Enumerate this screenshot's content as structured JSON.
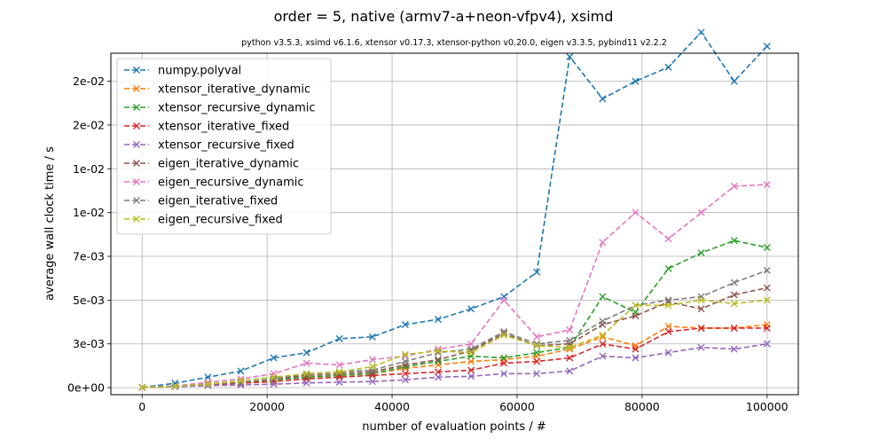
{
  "chart_data": {
    "type": "line",
    "title": "order = 5, native (armv7-a+neon-vfpv4), xsimd",
    "subtitle": "python v3.5.3, xsimd v6.1.6, xtensor v0.17.3, xtensor-python v0.20.0, eigen v3.3.5, pybind11 v2.2.2",
    "xlabel": "number of evaluation points / #",
    "ylabel": "average wall clock time / s",
    "xlim": [
      -5000,
      105000
    ],
    "ylim": [
      -0.0004,
      0.0191
    ],
    "xticks": [
      0,
      20000,
      40000,
      60000,
      80000,
      100000
    ],
    "xtick_labels": [
      "0",
      "20000",
      "40000",
      "60000",
      "80000",
      "100000"
    ],
    "yticks": [
      0,
      0.0025,
      0.005,
      0.0075,
      0.01,
      0.0125,
      0.015,
      0.0175
    ],
    "ytick_labels": [
      "0e+00",
      "3e-03",
      "5e-03",
      "7e-03",
      "1e-02",
      "1e-02",
      "2e-02",
      "2e-02"
    ],
    "grid": true,
    "legend_position": "top-left",
    "x": [
      0,
      5263,
      10526,
      15789,
      21053,
      26316,
      31579,
      36842,
      42105,
      47368,
      52632,
      57895,
      63158,
      68421,
      73684,
      78947,
      84211,
      89474,
      94737,
      100000
    ],
    "series": [
      {
        "name": "numpy.polyval",
        "color": "#1f77b4",
        "values": [
          2e-05,
          0.00025,
          0.0006,
          0.00095,
          0.0017,
          0.002,
          0.0028,
          0.0029,
          0.0036,
          0.0039,
          0.0045,
          0.0052,
          0.0066,
          0.0189,
          0.0165,
          0.0175,
          0.0183,
          0.0203,
          0.0175,
          0.0195
        ]
      },
      {
        "name": "xtensor_iterative_dynamic",
        "color": "#ff7f0e",
        "values": [
          1e-05,
          8e-05,
          0.0002,
          0.0003,
          0.00045,
          0.0006,
          0.0007,
          0.0008,
          0.0011,
          0.0013,
          0.0015,
          0.0016,
          0.0018,
          0.0022,
          0.0029,
          0.0024,
          0.0035,
          0.0034,
          0.0034,
          0.0036
        ]
      },
      {
        "name": "xtensor_recursive_dynamic",
        "color": "#2ca02c",
        "values": [
          1e-05,
          0.0001,
          0.0002,
          0.0003,
          0.00045,
          0.0006,
          0.0007,
          0.0008,
          0.0012,
          0.0015,
          0.0018,
          0.0017,
          0.002,
          0.0023,
          0.0052,
          0.0043,
          0.0068,
          0.0077,
          0.0084,
          0.008
        ]
      },
      {
        "name": "xtensor_iterative_fixed",
        "color": "#d62728",
        "values": [
          1e-05,
          7e-05,
          0.00017,
          0.00025,
          0.00035,
          0.0005,
          0.0006,
          0.0007,
          0.0008,
          0.0009,
          0.001,
          0.0014,
          0.0015,
          0.0017,
          0.0025,
          0.0022,
          0.0032,
          0.0034,
          0.0034,
          0.0034
        ]
      },
      {
        "name": "xtensor_recursive_fixed",
        "color": "#9467bd",
        "values": [
          1e-05,
          5e-05,
          0.00012,
          0.00015,
          0.0002,
          0.00027,
          0.00031,
          0.00035,
          0.00045,
          0.0006,
          0.00065,
          0.0008,
          0.0008,
          0.00095,
          0.0018,
          0.0017,
          0.002,
          0.0023,
          0.0022,
          0.0025
        ]
      },
      {
        "name": "eigen_iterative_dynamic",
        "color": "#8c564b",
        "values": [
          2e-05,
          8e-05,
          0.0002,
          0.0003,
          0.0005,
          0.0007,
          0.0008,
          0.0009,
          0.0013,
          0.0016,
          0.0021,
          0.0031,
          0.0024,
          0.0025,
          0.0036,
          0.0041,
          0.0049,
          0.0045,
          0.0053,
          0.0057
        ]
      },
      {
        "name": "eigen_recursive_dynamic",
        "color": "#e377c2",
        "values": [
          2e-05,
          0.0001,
          0.0003,
          0.0005,
          0.0008,
          0.0014,
          0.0013,
          0.0016,
          0.0018,
          0.0022,
          0.0025,
          0.005,
          0.0029,
          0.0033,
          0.0083,
          0.01,
          0.0085,
          0.01,
          0.0115,
          0.0116
        ]
      },
      {
        "name": "eigen_iterative_fixed",
        "color": "#7f7f7f",
        "values": [
          2e-05,
          8e-05,
          0.0002,
          0.0003,
          0.0005,
          0.0008,
          0.0009,
          0.001,
          0.0015,
          0.002,
          0.0022,
          0.0032,
          0.0025,
          0.0027,
          0.0038,
          0.0047,
          0.005,
          0.0052,
          0.006,
          0.0067
        ]
      },
      {
        "name": "eigen_recursive_fixed",
        "color": "#bcbd22",
        "values": [
          2e-05,
          8e-05,
          0.0002,
          0.0004,
          0.0006,
          0.0008,
          0.0009,
          0.0012,
          0.0019,
          0.0021,
          0.002,
          0.003,
          0.0024,
          0.0023,
          0.003,
          0.0047,
          0.0047,
          0.005,
          0.0048,
          0.005
        ]
      }
    ]
  }
}
